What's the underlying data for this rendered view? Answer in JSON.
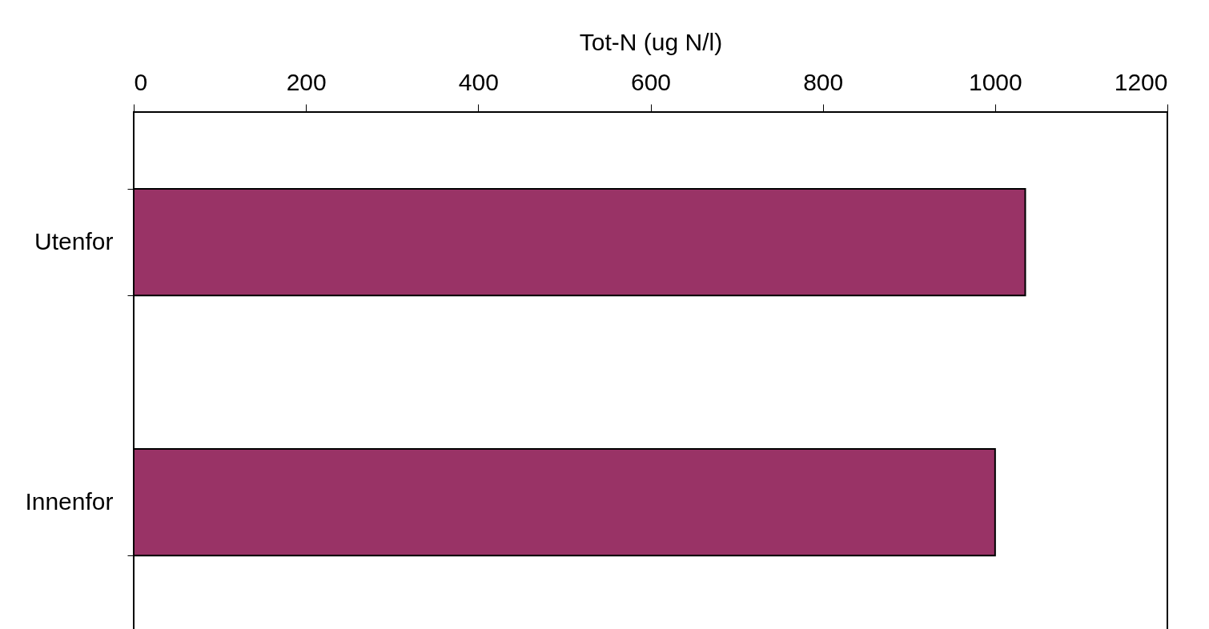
{
  "chart_data": {
    "type": "bar",
    "orientation": "horizontal",
    "xlabel": "Tot-N (ug N/l)",
    "categories": [
      "Utenfor",
      "Innenfor"
    ],
    "values": [
      1035,
      1000
    ],
    "color": "#993366",
    "xlim": [
      0,
      1200
    ],
    "xticks": [
      0,
      200,
      400,
      600,
      800,
      1000,
      1200
    ],
    "grid": false
  }
}
